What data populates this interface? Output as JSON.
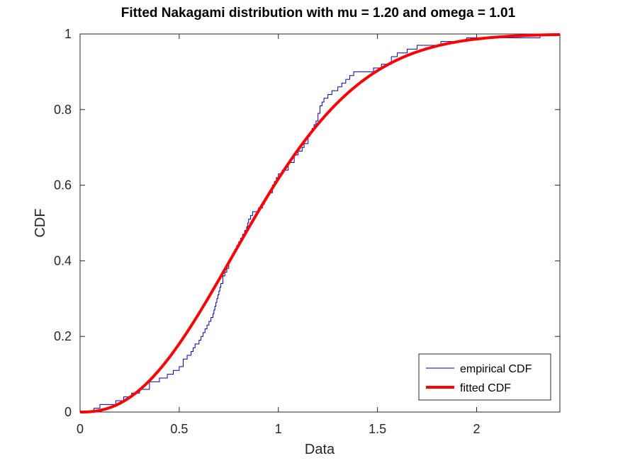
{
  "chart_data": {
    "type": "line",
    "title": "Fitted Nakagami distribution with mu = 1.20 and omega = 1.01",
    "xlabel": "Data",
    "ylabel": "CDF",
    "xlim": [
      0,
      2.42
    ],
    "ylim": [
      0,
      1
    ],
    "xticks": [
      0,
      0.5,
      1,
      1.5,
      2
    ],
    "xtick_labels": [
      "0",
      "0.5",
      "1",
      "1.5",
      "2"
    ],
    "yticks": [
      0,
      0.2,
      0.4,
      0.6,
      0.8,
      1
    ],
    "ytick_labels": [
      "0",
      "0.2",
      "0.4",
      "0.6",
      "0.8",
      "1"
    ],
    "grid": false,
    "legend_position": "bottom-right",
    "series": [
      {
        "name": "empirical CDF",
        "style": "stairs",
        "color": "#0000aa",
        "x": [
          0.07,
          0.1,
          0.18,
          0.22,
          0.26,
          0.3,
          0.35,
          0.4,
          0.44,
          0.47,
          0.5,
          0.52,
          0.54,
          0.56,
          0.57,
          0.58,
          0.6,
          0.61,
          0.62,
          0.63,
          0.64,
          0.65,
          0.66,
          0.67,
          0.675,
          0.68,
          0.685,
          0.69,
          0.695,
          0.7,
          0.705,
          0.71,
          0.72,
          0.73,
          0.74,
          0.75,
          0.76,
          0.77,
          0.78,
          0.79,
          0.8,
          0.81,
          0.82,
          0.83,
          0.84,
          0.845,
          0.85,
          0.86,
          0.87,
          0.9,
          0.92,
          0.93,
          0.94,
          0.95,
          0.97,
          0.98,
          0.99,
          1.0,
          1.02,
          1.05,
          1.08,
          1.1,
          1.12,
          1.13,
          1.15,
          1.16,
          1.17,
          1.18,
          1.19,
          1.2,
          1.21,
          1.22,
          1.23,
          1.25,
          1.27,
          1.3,
          1.32,
          1.34,
          1.36,
          1.38,
          1.4,
          1.42,
          1.44,
          1.48,
          1.52,
          1.57,
          1.6,
          1.65,
          1.7,
          1.76,
          1.82,
          1.95,
          2.1,
          2.32
        ],
        "y": [
          0.01,
          0.02,
          0.03,
          0.04,
          0.05,
          0.06,
          0.08,
          0.09,
          0.1,
          0.11,
          0.12,
          0.14,
          0.15,
          0.16,
          0.17,
          0.18,
          0.19,
          0.2,
          0.21,
          0.22,
          0.23,
          0.24,
          0.25,
          0.26,
          0.27,
          0.28,
          0.29,
          0.3,
          0.31,
          0.32,
          0.33,
          0.34,
          0.36,
          0.37,
          0.38,
          0.4,
          0.41,
          0.42,
          0.43,
          0.44,
          0.45,
          0.46,
          0.47,
          0.48,
          0.49,
          0.5,
          0.51,
          0.52,
          0.53,
          0.54,
          0.55,
          0.56,
          0.57,
          0.58,
          0.6,
          0.61,
          0.62,
          0.63,
          0.64,
          0.66,
          0.68,
          0.69,
          0.7,
          0.71,
          0.73,
          0.74,
          0.75,
          0.76,
          0.77,
          0.79,
          0.81,
          0.82,
          0.83,
          0.84,
          0.85,
          0.86,
          0.87,
          0.88,
          0.89,
          0.9,
          0.9,
          0.9,
          0.9,
          0.91,
          0.92,
          0.94,
          0.95,
          0.96,
          0.97,
          0.97,
          0.98,
          0.99,
          0.99,
          1.0
        ]
      },
      {
        "name": "fitted CDF",
        "style": "line",
        "color": "#ff0000",
        "function": "nakagami_cdf",
        "mu": 1.2,
        "omega": 1.01
      }
    ]
  }
}
